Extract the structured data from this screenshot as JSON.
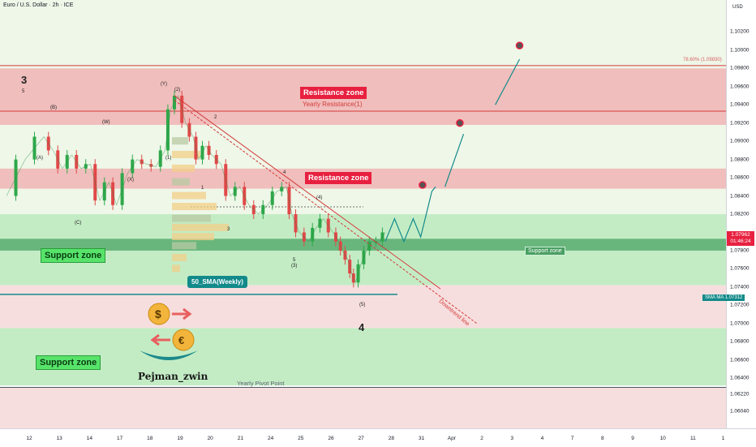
{
  "header": {
    "title": "Euro / U.S. Dollar · 2h · ICE",
    "currency": "USD"
  },
  "chart_data": {
    "type": "line",
    "title": "Euro / U.S. Dollar · 2h · ICE",
    "y_axis": {
      "unit": "USD",
      "ylim": [
        1.0585,
        1.1055
      ],
      "ticks": [
        "1.10200",
        "1.10000",
        "1.09800",
        "1.09600",
        "1.09400",
        "1.09200",
        "1.09000",
        "1.08800",
        "1.08600",
        "1.08400",
        "1.08200",
        "1.07800",
        "1.07600",
        "1.07400",
        "1.07200",
        "1.07000",
        "1.06800",
        "1.06600",
        "1.06400",
        "1.06220",
        "1.06040"
      ]
    },
    "x_axis": {
      "ticks": [
        "12",
        "13",
        "14",
        "17",
        "18",
        "19",
        "20",
        "21",
        "24",
        "25",
        "26",
        "27",
        "28",
        "31",
        "Apr",
        "2",
        "3",
        "4",
        "7",
        "8",
        "9",
        "10",
        "11",
        "1"
      ]
    },
    "price_series": {
      "name": "EURUSD",
      "points": [
        [
          0,
          1.084
        ],
        [
          1,
          1.088
        ],
        [
          2,
          1.0905
        ],
        [
          2.5,
          1.089
        ],
        [
          3,
          1.087
        ],
        [
          3.5,
          1.0885
        ],
        [
          4,
          1.087
        ],
        [
          4.5,
          1.0875
        ],
        [
          5,
          1.0835
        ],
        [
          5.5,
          1.0855
        ],
        [
          5.9,
          1.083
        ],
        [
          6.5,
          1.0865
        ],
        [
          7,
          1.088
        ],
        [
          7.5,
          1.0875
        ],
        [
          8,
          1.0872
        ],
        [
          8.5,
          1.089
        ],
        [
          8.8,
          1.0935
        ],
        [
          9.2,
          1.095
        ],
        [
          9.6,
          1.092
        ],
        [
          10,
          1.0905
        ],
        [
          10.3,
          1.088
        ],
        [
          10.7,
          1.0895
        ],
        [
          11,
          1.0885
        ],
        [
          11.5,
          1.0875
        ],
        [
          12,
          1.084
        ],
        [
          12.5,
          1.085
        ],
        [
          13,
          1.083
        ],
        [
          13.5,
          1.082
        ],
        [
          14,
          1.083
        ],
        [
          14.5,
          1.0845
        ],
        [
          15,
          1.085
        ],
        [
          15.3,
          1.082
        ],
        [
          15.7,
          1.08
        ],
        [
          16.2,
          1.079
        ],
        [
          16.6,
          1.0805
        ],
        [
          17,
          1.0815
        ],
        [
          17.5,
          1.08
        ],
        [
          17.8,
          1.079
        ],
        [
          18,
          1.078
        ],
        [
          18.3,
          1.077
        ],
        [
          18.5,
          1.0755
        ],
        [
          18.7,
          1.0745
        ],
        [
          19,
          1.0765
        ],
        [
          19.3,
          1.078
        ],
        [
          19.6,
          1.079
        ],
        [
          20,
          1.079
        ],
        [
          20.3,
          1.08
        ]
      ]
    },
    "projection_points": [
      [
        20.3,
        1.079
      ],
      [
        20.8,
        1.0815
      ],
      [
        21.3,
        1.079
      ],
      [
        21.8,
        1.0815
      ],
      [
        22.2,
        1.0795
      ],
      [
        22.8,
        1.0845
      ],
      [
        23.0,
        1.085
      ]
    ],
    "projection_arrows": [
      [
        23.5,
        1.085,
        24.5,
        1.0908
      ],
      [
        26.2,
        1.094,
        27.5,
        1.099
      ]
    ],
    "target_points": [
      [
        22.3,
        1.0852
      ],
      [
        24.3,
        1.092
      ],
      [
        27.5,
        1.1005
      ]
    ],
    "zones": [
      {
        "label": "Resistance zone",
        "type": "resistance",
        "low": 1.0918,
        "high": 1.098
      },
      {
        "label": "Resistance zone",
        "type": "resistance",
        "low": 1.0848,
        "high": 1.087
      },
      {
        "label": "Support zone",
        "type": "support",
        "low": 1.0742,
        "high": 1.082
      },
      {
        "label": "Support zone",
        "type": "support",
        "low": 1.0632,
        "high": 1.0695
      },
      {
        "label": "Support zone",
        "type": "support-tag",
        "low": 1.078,
        "high": 1.0793
      }
    ],
    "lines": [
      {
        "label": "Yearly Resistance(1)",
        "value": 1.0933
      },
      {
        "label": "Yearly Pivot Point",
        "value": 1.063
      },
      {
        "label": "50_SMA(Weekly)",
        "value": 1.0732
      },
      {
        "label": "78.60% (1.09830)",
        "value": 1.0983
      }
    ],
    "downtrend_line": {
      "label": "Downtrend line"
    },
    "wave_labels": [
      "3",
      "5",
      "(A)",
      "(B)",
      "(C)",
      "(W)",
      "(X)",
      "(Y)",
      "(2)",
      "(1)",
      "1",
      "2",
      "3",
      "4",
      "5",
      "(3)",
      "(4)",
      "(5)",
      "4"
    ],
    "current_price": "1.07962",
    "countdown": "01:46:24",
    "sma_tag": "SMA MA",
    "sma_value": "1.07312"
  },
  "annotations": {
    "resistance_top": "Resistance zone",
    "resistance_mid": "Resistance zone",
    "yearly_resistance": "Yearly Resistance(1)",
    "support_upper": "Support zone",
    "support_lower": "Support zone",
    "support_tag": "Support zone",
    "sma_label": "50_SMA(Weekly)",
    "yearly_pivot": "Yearly Pivot Point",
    "downtrend": "Downtrend line",
    "fib": "78.60% (1.09830)",
    "brand": "Pejman_zwin",
    "wave_3": "3",
    "wave_4": "4"
  },
  "colors": {
    "resistance_fill": "#f3bcbc",
    "support_fill": "#bdebc0",
    "bull": "#2ea84a",
    "bear": "#e04848",
    "accent_red": "#e8203f",
    "sma": "#138a8a"
  }
}
